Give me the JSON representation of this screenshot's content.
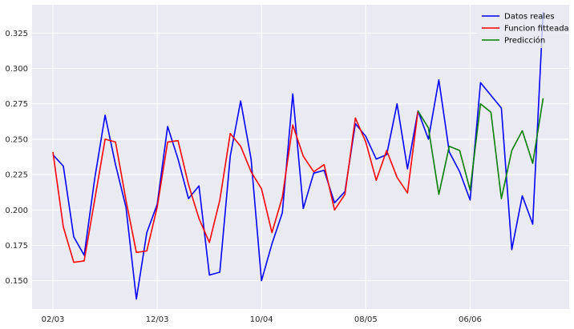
{
  "chart_data": {
    "type": "line",
    "title": "",
    "xlabel": "",
    "ylabel": "",
    "ylim": [
      0.13,
      0.345
    ],
    "grid": true,
    "legend": "top-right",
    "yticks": [
      0.15,
      0.175,
      0.2,
      0.225,
      0.25,
      0.275,
      0.3,
      0.325
    ],
    "ytick_labels": [
      "0.150",
      "0.175",
      "0.200",
      "0.225",
      "0.250",
      "0.275",
      "0.300",
      "0.325"
    ],
    "xticks": [
      {
        "index": 0,
        "label": "02/03"
      },
      {
        "index": 10,
        "label": "12/03"
      },
      {
        "index": 20,
        "label": "10/04"
      },
      {
        "index": 30,
        "label": "08/05"
      },
      {
        "index": 40,
        "label": "06/06"
      }
    ],
    "xlim": [
      -2.0,
      49.5
    ],
    "series": [
      {
        "name": "Datos reales",
        "color": "#0000ff",
        "x": [
          0,
          1,
          2,
          3,
          4,
          5,
          6,
          7,
          8,
          9,
          10,
          11,
          12,
          13,
          14,
          15,
          16,
          17,
          18,
          19,
          20,
          21,
          22,
          23,
          24,
          25,
          26,
          27,
          28,
          29,
          30,
          31,
          32,
          33,
          34,
          35,
          36,
          37,
          38,
          39,
          40,
          41,
          42,
          43,
          44,
          45,
          46,
          47
        ],
        "values": [
          0.239,
          0.231,
          0.181,
          0.168,
          0.222,
          0.267,
          0.232,
          0.202,
          0.137,
          0.184,
          0.204,
          0.259,
          0.236,
          0.208,
          0.217,
          0.154,
          0.156,
          0.238,
          0.277,
          0.236,
          0.15,
          0.176,
          0.198,
          0.282,
          0.201,
          0.226,
          0.228,
          0.205,
          0.213,
          0.261,
          0.252,
          0.236,
          0.239,
          0.275,
          0.229,
          0.27,
          0.25,
          0.292,
          0.241,
          0.227,
          0.207,
          0.29,
          0.281,
          0.272,
          0.172,
          0.21,
          0.19,
          0.34
        ]
      },
      {
        "name": "Funcion fitteada",
        "color": "#ff0000",
        "x": [
          0,
          1,
          2,
          3,
          4,
          5,
          6,
          7,
          8,
          9,
          10,
          11,
          12,
          13,
          14,
          15,
          16,
          17,
          18,
          19,
          20,
          21,
          22,
          23,
          24,
          25,
          26,
          27,
          28,
          29,
          30,
          31,
          32,
          33,
          34,
          35
        ],
        "values": [
          0.241,
          0.188,
          0.163,
          0.164,
          0.207,
          0.25,
          0.248,
          0.207,
          0.17,
          0.171,
          0.202,
          0.248,
          0.249,
          0.218,
          0.194,
          0.177,
          0.207,
          0.254,
          0.245,
          0.227,
          0.215,
          0.184,
          0.209,
          0.26,
          0.238,
          0.227,
          0.232,
          0.2,
          0.211,
          0.265,
          0.248,
          0.221,
          0.242,
          0.223,
          0.212,
          0.27
        ]
      },
      {
        "name": "Predicción",
        "color": "#008000",
        "x": [
          35,
          36,
          37,
          38,
          39,
          40,
          41,
          42,
          43,
          44,
          45,
          46,
          47
        ],
        "values": [
          0.27,
          0.258,
          0.211,
          0.245,
          0.242,
          0.214,
          0.275,
          0.269,
          0.208,
          0.242,
          0.256,
          0.233,
          0.279
        ]
      }
    ]
  }
}
